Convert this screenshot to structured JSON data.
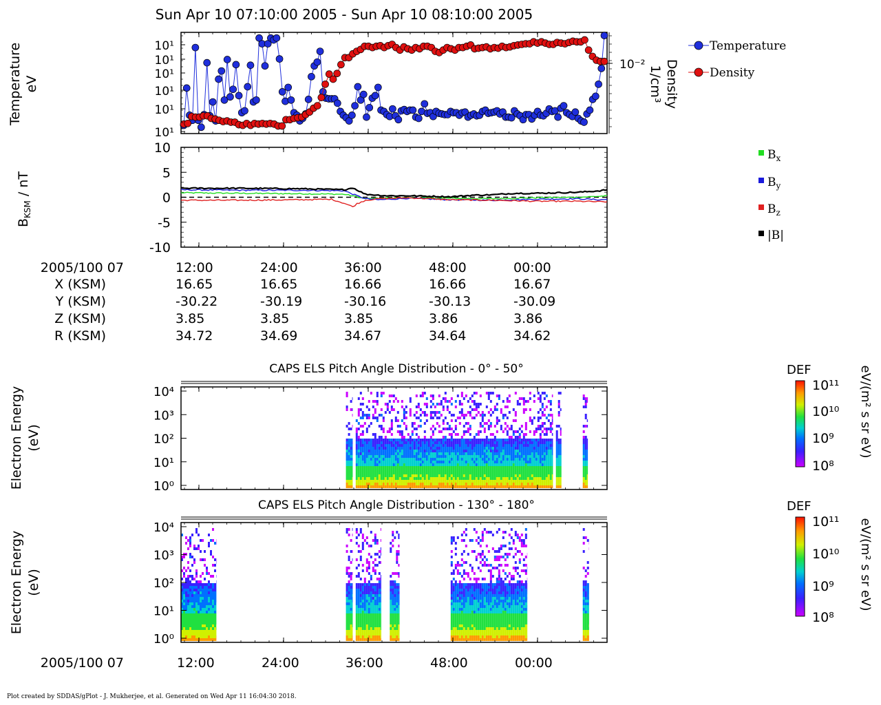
{
  "header": {
    "title": "Sun Apr 10 07:10:00 2005 - Sun Apr 10 08:10:00 2005"
  },
  "footer": {
    "text": "Plot created by SDDAS/gPlot - J. Mukherjee, et al.  Generated on Wed Apr 11 16:04:30 2018."
  },
  "colors": {
    "temperature": "#1f2fdc",
    "density": "#e01010",
    "bx": "#22dd22",
    "by": "#1a1adc",
    "bz": "#e02020",
    "btotal": "#000000"
  },
  "ephemeris": {
    "date_label": "2005/100 07",
    "rows": [
      {
        "label": "X (KSM)",
        "values": [
          "16.65",
          "16.65",
          "16.66",
          "16.66",
          "16.67"
        ]
      },
      {
        "label": "Y (KSM)",
        "values": [
          "-30.22",
          "-30.19",
          "-30.16",
          "-30.13",
          "-30.09"
        ]
      },
      {
        "label": "Z (KSM)",
        "values": [
          "3.85",
          "3.85",
          "3.85",
          "3.86",
          "3.86"
        ]
      },
      {
        "label": "R (KSM)",
        "values": [
          "34.72",
          "34.69",
          "34.67",
          "34.64",
          "34.62"
        ]
      }
    ]
  },
  "bottom_axis": {
    "date_label": "2005/100 07"
  },
  "chart_data": [
    {
      "type": "scatter",
      "panel": "plasma",
      "xlabel": "",
      "ylabel_lines": [
        "Temperature",
        "eV"
      ],
      "y2label_lines": [
        "Density",
        "1/cm³"
      ],
      "x_ticks": [
        "12:00",
        "24:00",
        "36:00",
        "48:00",
        "00:00"
      ],
      "y_ticks": [
        "10¹",
        "10¹",
        "10¹",
        "10¹",
        "10¹",
        "10¹"
      ],
      "y2_ticks": [
        "10⁻²"
      ],
      "legend": [
        "Temperature",
        "Density"
      ],
      "legend_position": "right",
      "series": [
        {
          "name": "Temperature",
          "color": "#1f2fdc",
          "y": [
            1.3,
            7.2,
            2.9,
            2.1,
            13.6,
            2.1,
            1.0,
            3.0,
            11.2,
            2.8,
            5.0,
            2.0,
            8.6,
            9.9,
            5.3,
            11.7,
            5.8,
            7.0,
            10.9,
            6.0,
            3.3,
            3.6,
            7.4,
            10.8,
            5.0,
            5.3,
            15.1,
            14.2,
            10.7,
            14.2,
            15.1,
            14.8,
            15.1,
            11.8,
            6.6,
            5.1,
            7.3,
            5.3,
            3.3,
            2.9,
            2.0,
            2.4,
            3.1,
            5.4,
            9.0,
            10.7,
            11.3,
            13.0,
            6.6,
            5.6,
            5.5,
            5.5,
            5.5,
            4.8,
            3.5,
            2.9,
            2.5,
            2.0,
            2.9,
            4.4,
            7.4,
            5.3,
            6.2,
            2.6,
            4.1,
            5.6,
            6.0,
            7.3,
            3.7,
            3.5,
            3.0,
            2.7,
            3.9,
            2.8,
            2.2,
            3.6,
            3.8,
            3.5,
            3.7,
            3.7,
            2.6,
            2.4,
            3.5,
            4.7,
            3.2,
            3.3,
            2.7,
            3.5,
            3.2,
            3.1,
            3.0,
            3.0,
            3.5,
            3.3,
            3.3,
            2.9,
            3.3,
            3.4,
            2.6,
            2.9,
            3.1,
            2.8,
            2.9,
            3.5,
            3.7,
            3.2,
            3.3,
            3.4,
            3.6,
            3.1,
            3.4,
            2.6,
            2.6,
            2.5,
            3.6,
            3.1,
            2.8,
            2.2,
            3.0,
            3.0,
            2.3,
            2.9,
            3.5,
            2.9,
            2.8,
            3.2,
            3.9,
            3.5,
            3.6,
            2.6,
            4.0,
            4.4,
            3.3,
            3.0,
            2.7,
            3.4,
            2.4,
            2.0,
            1.8,
            3.1,
            3.7,
            5.4,
            5.9,
            7.8,
            10.3,
            15.5
          ],
          "note_x_hours": [
            7.2,
            8.1
          ]
        },
        {
          "name": "Density",
          "color": "#e01010",
          "y": [
            1.5,
            1.6,
            2.7,
            2.6,
            2.6,
            2.8,
            2.8,
            2.4,
            2.3,
            2.1,
            1.9,
            2.0,
            1.8,
            1.8,
            1.4,
            1.3,
            1.6,
            1.3,
            1.6,
            1.5,
            1.6,
            1.5,
            1.6,
            1.5,
            1.2,
            1.2,
            2.2,
            2.2,
            2.4,
            2.5,
            2.6,
            3.0,
            3.4,
            4.0,
            4.4,
            5.7,
            7.8,
            9.4,
            8.6,
            9.5,
            10.9,
            12.0,
            12.0,
            12.6,
            13.0,
            13.3,
            13.8,
            13.8,
            13.6,
            13.8,
            13.9,
            13.6,
            13.9,
            14.1,
            13.6,
            13.2,
            13.7,
            13.4,
            13.2,
            13.6,
            13.4,
            13.8,
            13.8,
            13.6,
            13.0,
            12.8,
            13.2,
            13.6,
            13.4,
            13.2,
            13.6,
            13.6,
            13.8,
            14.0,
            13.4,
            13.5,
            13.6,
            13.7,
            13.4,
            13.6,
            13.5,
            13.8,
            13.6,
            13.7,
            13.9,
            14.0,
            14.1,
            14.2,
            14.2,
            14.5,
            14.3,
            14.5,
            14.3,
            14.1,
            14.1,
            14.4,
            14.3,
            14.2,
            14.4,
            14.6,
            14.5,
            14.5,
            14.8,
            13.2,
            12.2,
            11.6,
            11.4,
            11.4
          ]
        }
      ],
      "x_range": [
        7.167,
        8.167
      ]
    },
    {
      "type": "line",
      "panel": "magnetic",
      "ylabel": "B",
      "ylabel_sub": "KSM",
      "ylabel_unit": " / nT",
      "ylim": [
        -10,
        10
      ],
      "y_ticks": [
        "10",
        "5",
        "0",
        "-5",
        "-10"
      ],
      "x_ticks": [
        "12:00",
        "24:00",
        "36:00",
        "48:00",
        "00:00"
      ],
      "legend_position": "right",
      "series": [
        {
          "name_main": "B",
          "name_sub": "x",
          "color": "#22dd22",
          "x": [
            7.167,
            7.3,
            7.45,
            7.55,
            7.58,
            7.6,
            7.63,
            7.7,
            7.8,
            7.9,
            8.0,
            8.1,
            8.15,
            8.167
          ],
          "y": [
            0.9,
            0.8,
            0.7,
            0.6,
            0.1,
            -0.3,
            -0.2,
            -0.1,
            -0.2,
            -0.3,
            -0.1,
            0.0,
            0.2,
            0.3
          ]
        },
        {
          "name_main": "B",
          "name_sub": "y",
          "color": "#1a1adc",
          "x": [
            7.167,
            7.3,
            7.45,
            7.55,
            7.58,
            7.6,
            7.63,
            7.7,
            7.8,
            7.9,
            8.0,
            8.1,
            8.15,
            8.167
          ],
          "y": [
            1.5,
            1.4,
            1.4,
            1.3,
            0.3,
            -0.3,
            -0.5,
            -0.2,
            -0.5,
            -0.6,
            -0.4,
            -0.3,
            -0.5,
            -0.4
          ]
        },
        {
          "name_main": "B",
          "name_sub": "z",
          "color": "#e02020",
          "x": [
            7.167,
            7.3,
            7.45,
            7.52,
            7.55,
            7.57,
            7.58,
            7.6,
            7.63,
            7.7,
            7.8,
            7.9,
            8.0,
            8.1,
            8.15,
            8.167
          ],
          "y": [
            -0.6,
            -0.6,
            -0.5,
            -0.4,
            -1.2,
            -1.9,
            -1.3,
            -0.6,
            -0.3,
            -0.1,
            -0.5,
            -0.6,
            -0.8,
            -0.8,
            -0.9,
            -0.9
          ]
        },
        {
          "name_main": "|B|",
          "name_sub": "",
          "color": "#000000",
          "x": [
            7.167,
            7.3,
            7.45,
            7.55,
            7.57,
            7.6,
            7.65,
            7.7,
            7.75,
            7.8,
            7.85,
            7.9,
            7.95,
            8.0,
            8.05,
            8.1,
            8.15,
            8.167
          ],
          "y": [
            1.8,
            1.8,
            1.7,
            1.5,
            1.9,
            0.6,
            0.3,
            0.3,
            0.2,
            0.1,
            0.4,
            0.5,
            0.8,
            0.8,
            0.9,
            1.0,
            1.3,
            1.5
          ]
        }
      ],
      "dashed_zero": true,
      "x_range": [
        7.167,
        8.167
      ]
    },
    {
      "type": "heatmap",
      "panel": "els_low",
      "title": "CAPS ELS Pitch Angle Distribution - 0° - 50°",
      "ylabel_lines": [
        "Electron Energy",
        "(eV)"
      ],
      "y_ticks": [
        "10⁰",
        "10¹",
        "10²",
        "10³",
        "10⁴"
      ],
      "x_ticks": [
        "12:00",
        "24:00",
        "36:00",
        "48:00",
        "00:00"
      ],
      "colorbar": {
        "title": "DEF",
        "ticks": [
          "10¹¹",
          "10¹⁰",
          "10⁹",
          "10⁸"
        ],
        "unit": "eV/(m² s sr eV)"
      },
      "intervals_hours": [
        [
          7.554,
          7.57
        ],
        [
          7.577,
          8.04
        ],
        [
          8.047,
          8.06
        ],
        [
          8.11,
          8.122
        ]
      ],
      "x_range": [
        7.167,
        8.167
      ]
    },
    {
      "type": "heatmap",
      "panel": "els_high",
      "title": "CAPS ELS Pitch Angle Distribution - 130° - 180°",
      "ylabel_lines": [
        "Electron Energy",
        "(eV)"
      ],
      "y_ticks": [
        "10⁰",
        "10¹",
        "10²",
        "10³",
        "10⁴"
      ],
      "x_ticks": [
        "12:00",
        "24:00",
        "36:00",
        "48:00",
        "00:00"
      ],
      "colorbar": {
        "title": "DEF",
        "ticks": [
          "10¹¹",
          "10¹⁰",
          "10⁹",
          "10⁸"
        ],
        "unit": "eV/(m² s sr eV)"
      },
      "intervals_hours": [
        [
          7.167,
          7.25
        ],
        [
          7.554,
          7.57
        ],
        [
          7.577,
          7.637
        ],
        [
          7.657,
          7.68
        ],
        [
          7.8,
          7.98
        ],
        [
          8.11,
          8.125
        ]
      ],
      "x_range": [
        7.167,
        8.167
      ]
    }
  ]
}
